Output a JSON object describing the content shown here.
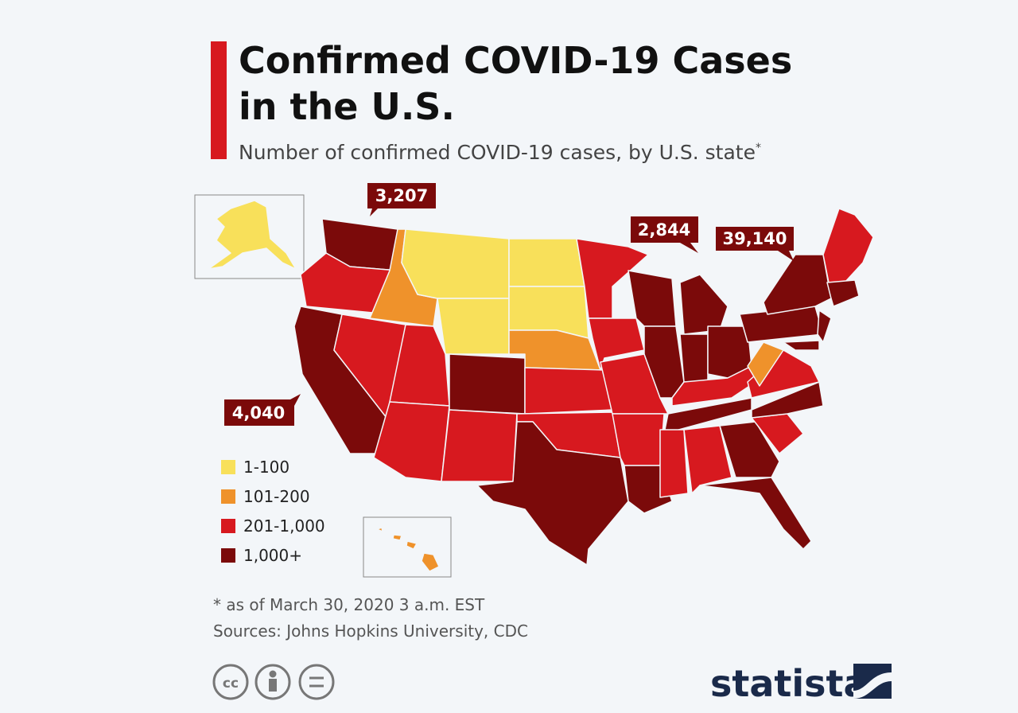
{
  "header": {
    "title_lines": [
      "Confirmed COVID-19 Cases",
      "in the U.S."
    ],
    "subtitle": "Number of confirmed COVID-19 cases, by U.S. state",
    "subtitle_mark": "*"
  },
  "map": {
    "callouts": [
      {
        "label": "3,207"
      },
      {
        "label": "2,844"
      },
      {
        "label": "39,140"
      },
      {
        "label": "4,040"
      }
    ],
    "legend": {
      "items": [
        {
          "label": "1-100",
          "color": "#f8e05a"
        },
        {
          "label": "101-200",
          "color": "#ef922b"
        },
        {
          "label": "201-1,000",
          "color": "#d7191f"
        },
        {
          "label": "1,000+",
          "color": "#7b0a0a"
        }
      ]
    }
  },
  "footer": {
    "note": "* as of March 30, 2020 3 a.m. EST",
    "sources": "Sources: Johns Hopkins University, CDC",
    "license_icon": "cc",
    "brand": "statista"
  }
}
